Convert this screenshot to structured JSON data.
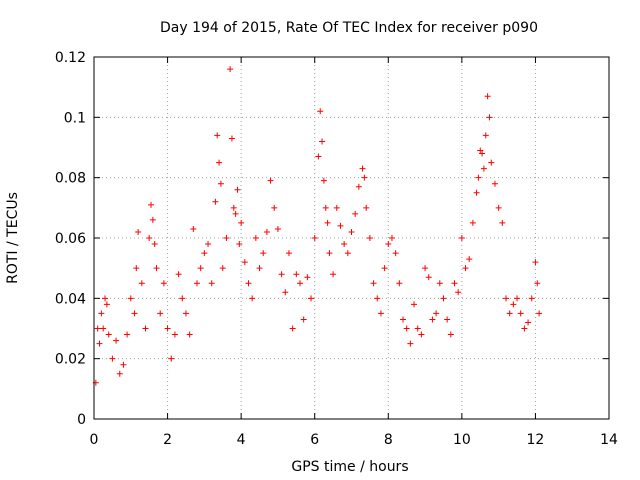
{
  "chart_data": {
    "type": "scatter",
    "title": "Day 194 of 2015, Rate Of TEC Index for receiver p090",
    "xlabel": "GPS time / hours",
    "ylabel": "ROTI / TECUs",
    "xlim": [
      0,
      14
    ],
    "ylim": [
      0,
      0.12
    ],
    "xticks": [
      "0",
      "2",
      "4",
      "6",
      "8",
      "10",
      "12",
      "14"
    ],
    "yticks": [
      "0",
      "0.02",
      "0.04",
      "0.06",
      "0.08",
      "0.1",
      "0.12"
    ],
    "grid": true,
    "marker": "+",
    "color": "#ff0000",
    "series": [
      {
        "name": "ROTI",
        "x": [
          0.05,
          0.1,
          0.15,
          0.2,
          0.25,
          0.3,
          0.35,
          0.4,
          0.5,
          0.6,
          0.7,
          0.8,
          0.9,
          1.0,
          1.1,
          1.15,
          1.2,
          1.3,
          1.4,
          1.5,
          1.55,
          1.6,
          1.65,
          1.7,
          1.8,
          1.9,
          2.0,
          2.1,
          2.2,
          2.3,
          2.4,
          2.5,
          2.6,
          2.7,
          2.8,
          2.9,
          3.0,
          3.1,
          3.2,
          3.3,
          3.35,
          3.4,
          3.45,
          3.5,
          3.6,
          3.7,
          3.75,
          3.8,
          3.85,
          3.9,
          3.95,
          4.0,
          4.1,
          4.2,
          4.3,
          4.4,
          4.5,
          4.6,
          4.7,
          4.8,
          4.9,
          5.0,
          5.1,
          5.2,
          5.3,
          5.4,
          5.5,
          5.6,
          5.7,
          5.8,
          5.9,
          6.0,
          6.1,
          6.15,
          6.2,
          6.25,
          6.3,
          6.35,
          6.4,
          6.5,
          6.6,
          6.7,
          6.8,
          6.9,
          7.0,
          7.1,
          7.2,
          7.3,
          7.35,
          7.4,
          7.5,
          7.6,
          7.7,
          7.8,
          7.9,
          8.0,
          8.1,
          8.2,
          8.3,
          8.4,
          8.5,
          8.6,
          8.7,
          8.8,
          8.9,
          9.0,
          9.1,
          9.2,
          9.3,
          9.4,
          9.5,
          9.6,
          9.7,
          9.8,
          9.9,
          10.0,
          10.1,
          10.2,
          10.3,
          10.4,
          10.45,
          10.5,
          10.55,
          10.6,
          10.65,
          10.7,
          10.75,
          10.8,
          10.9,
          11.0,
          11.1,
          11.2,
          11.3,
          11.4,
          11.5,
          11.6,
          11.7,
          11.8,
          11.9,
          12.0,
          12.05,
          12.1
        ],
        "y": [
          0.012,
          0.03,
          0.025,
          0.035,
          0.03,
          0.04,
          0.038,
          0.028,
          0.02,
          0.026,
          0.015,
          0.018,
          0.028,
          0.04,
          0.035,
          0.05,
          0.062,
          0.045,
          0.03,
          0.06,
          0.071,
          0.066,
          0.058,
          0.05,
          0.035,
          0.045,
          0.03,
          0.02,
          0.028,
          0.048,
          0.04,
          0.035,
          0.028,
          0.063,
          0.045,
          0.05,
          0.055,
          0.058,
          0.045,
          0.072,
          0.094,
          0.085,
          0.078,
          0.05,
          0.06,
          0.116,
          0.093,
          0.07,
          0.068,
          0.076,
          0.058,
          0.065,
          0.052,
          0.045,
          0.04,
          0.06,
          0.05,
          0.055,
          0.062,
          0.079,
          0.07,
          0.063,
          0.048,
          0.042,
          0.055,
          0.03,
          0.048,
          0.045,
          0.033,
          0.047,
          0.04,
          0.06,
          0.087,
          0.102,
          0.092,
          0.079,
          0.07,
          0.065,
          0.055,
          0.048,
          0.07,
          0.064,
          0.058,
          0.055,
          0.062,
          0.068,
          0.077,
          0.083,
          0.08,
          0.07,
          0.06,
          0.045,
          0.04,
          0.035,
          0.05,
          0.058,
          0.06,
          0.055,
          0.045,
          0.033,
          0.03,
          0.025,
          0.038,
          0.03,
          0.028,
          0.05,
          0.047,
          0.033,
          0.035,
          0.045,
          0.04,
          0.033,
          0.028,
          0.045,
          0.042,
          0.06,
          0.05,
          0.053,
          0.065,
          0.075,
          0.08,
          0.089,
          0.088,
          0.083,
          0.094,
          0.107,
          0.1,
          0.085,
          0.078,
          0.07,
          0.065,
          0.04,
          0.035,
          0.038,
          0.04,
          0.035,
          0.03,
          0.032,
          0.04,
          0.052,
          0.045,
          0.035
        ]
      }
    ]
  }
}
